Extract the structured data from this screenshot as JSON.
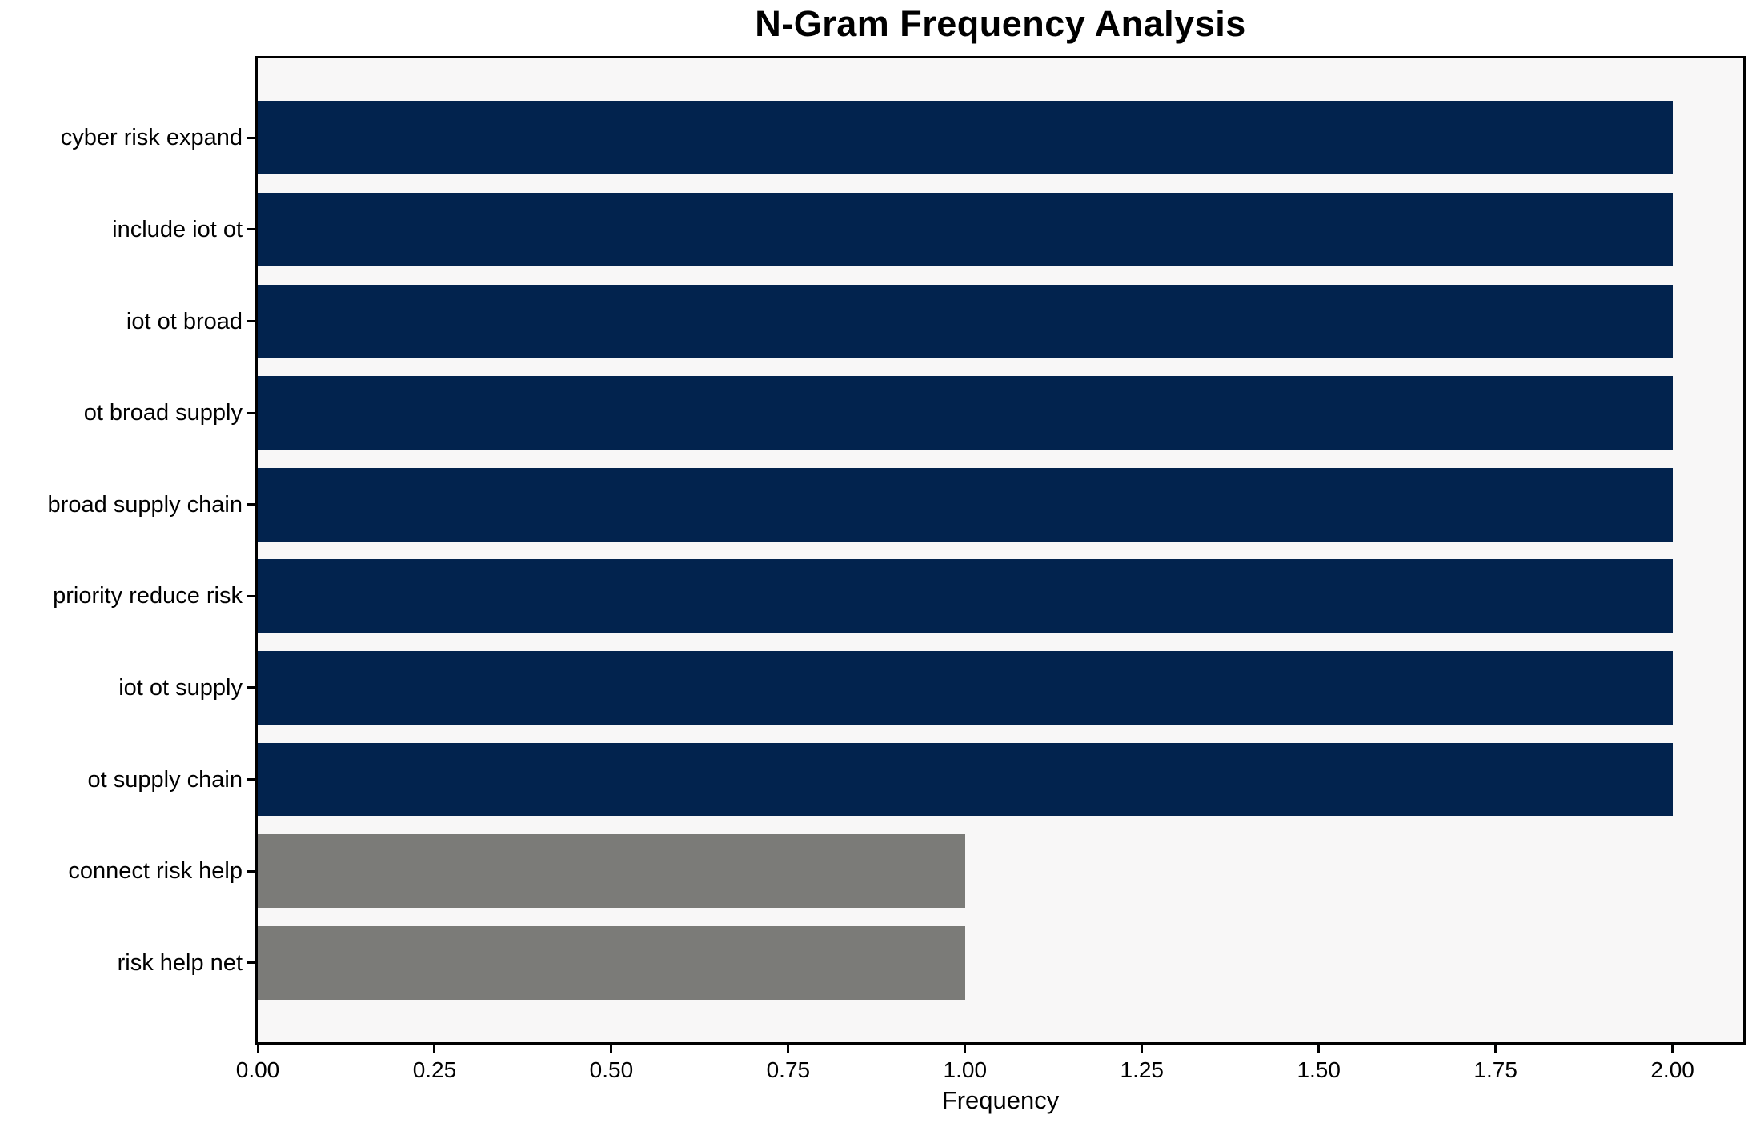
{
  "figure": {
    "background": "#ffffff"
  },
  "chart_data": {
    "type": "bar",
    "orientation": "horizontal",
    "title": "N-Gram Frequency Analysis",
    "xlabel": "Frequency",
    "ylabel": "",
    "categories": [
      "cyber risk expand",
      "include iot ot",
      "iot ot broad",
      "ot broad supply",
      "broad supply chain",
      "priority reduce risk",
      "iot ot supply",
      "ot supply chain",
      "connect risk help",
      "risk help net"
    ],
    "values": [
      2,
      2,
      2,
      2,
      2,
      2,
      2,
      2,
      1,
      1
    ],
    "bar_colors": [
      "#02234e",
      "#02234e",
      "#02234e",
      "#02234e",
      "#02234e",
      "#02234e",
      "#02234e",
      "#02234e",
      "#7b7b78",
      "#7b7b78"
    ],
    "xlim": [
      0,
      2.1
    ],
    "xticks": [
      {
        "value": 0.0,
        "label": "0.00"
      },
      {
        "value": 0.25,
        "label": "0.25"
      },
      {
        "value": 0.5,
        "label": "0.50"
      },
      {
        "value": 0.75,
        "label": "0.75"
      },
      {
        "value": 1.0,
        "label": "1.00"
      },
      {
        "value": 1.25,
        "label": "1.25"
      },
      {
        "value": 1.5,
        "label": "1.50"
      },
      {
        "value": 1.75,
        "label": "1.75"
      },
      {
        "value": 2.0,
        "label": "2.00"
      }
    ],
    "grid": false,
    "legend": null,
    "styles": {
      "bar_color_freq2": "#02234e",
      "bar_color_freq1": "#7b7b78",
      "plot_background": "#f8f7f7",
      "spine_color": "#000000",
      "text_color": "#000000"
    }
  }
}
